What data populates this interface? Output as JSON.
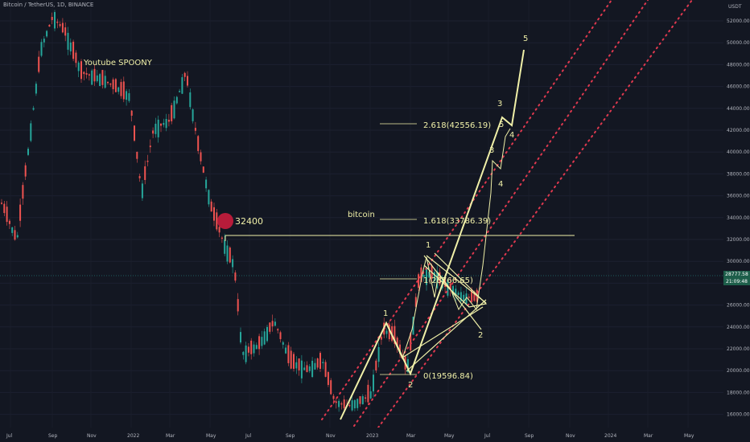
{
  "header": {
    "symbol_title": "Bitcoin / TetherUS, 1D, BINANCE",
    "currency": "USDT"
  },
  "annotations": {
    "youtube": "Youtube   SPOONY",
    "level_badge": "32400",
    "bitcoin": "bitcoin",
    "fib_2618": "2.618(42556.19)",
    "fib_1618": "1.618(33786.39)",
    "fib_1": "1(28766.65)",
    "fib_0": "0(19596.84)",
    "wave_labels": [
      "1",
      "2",
      "1",
      "2",
      "3",
      "4",
      "5",
      "3",
      "4",
      "5"
    ]
  },
  "price_axis": {
    "labels": [
      "52000.00",
      "50000.00",
      "48000.00",
      "46000.00",
      "44000.00",
      "42000.00",
      "40000.00",
      "38000.00",
      "36000.00",
      "34000.00",
      "32000.00",
      "30000.00",
      "28000.00",
      "26000.00",
      "24000.00",
      "22000.00",
      "20000.00",
      "18000.00",
      "16000.00"
    ]
  },
  "time_axis": {
    "labels": [
      "Jul",
      "Sep",
      "Nov",
      "2022",
      "Mar",
      "May",
      "Jul",
      "Sep",
      "Nov",
      "2023",
      "Mar",
      "May",
      "Jul",
      "Sep",
      "Nov",
      "2024",
      "Mar",
      "May"
    ]
  },
  "current_price": {
    "value": "28777.58",
    "countdown": "21:09:48"
  },
  "colors": {
    "background": "#131722",
    "up": "#26a69a",
    "down": "#ef5350",
    "drawing": "#f0f0a8",
    "channel": "#e0394f",
    "badge": "#b71c3a"
  }
}
